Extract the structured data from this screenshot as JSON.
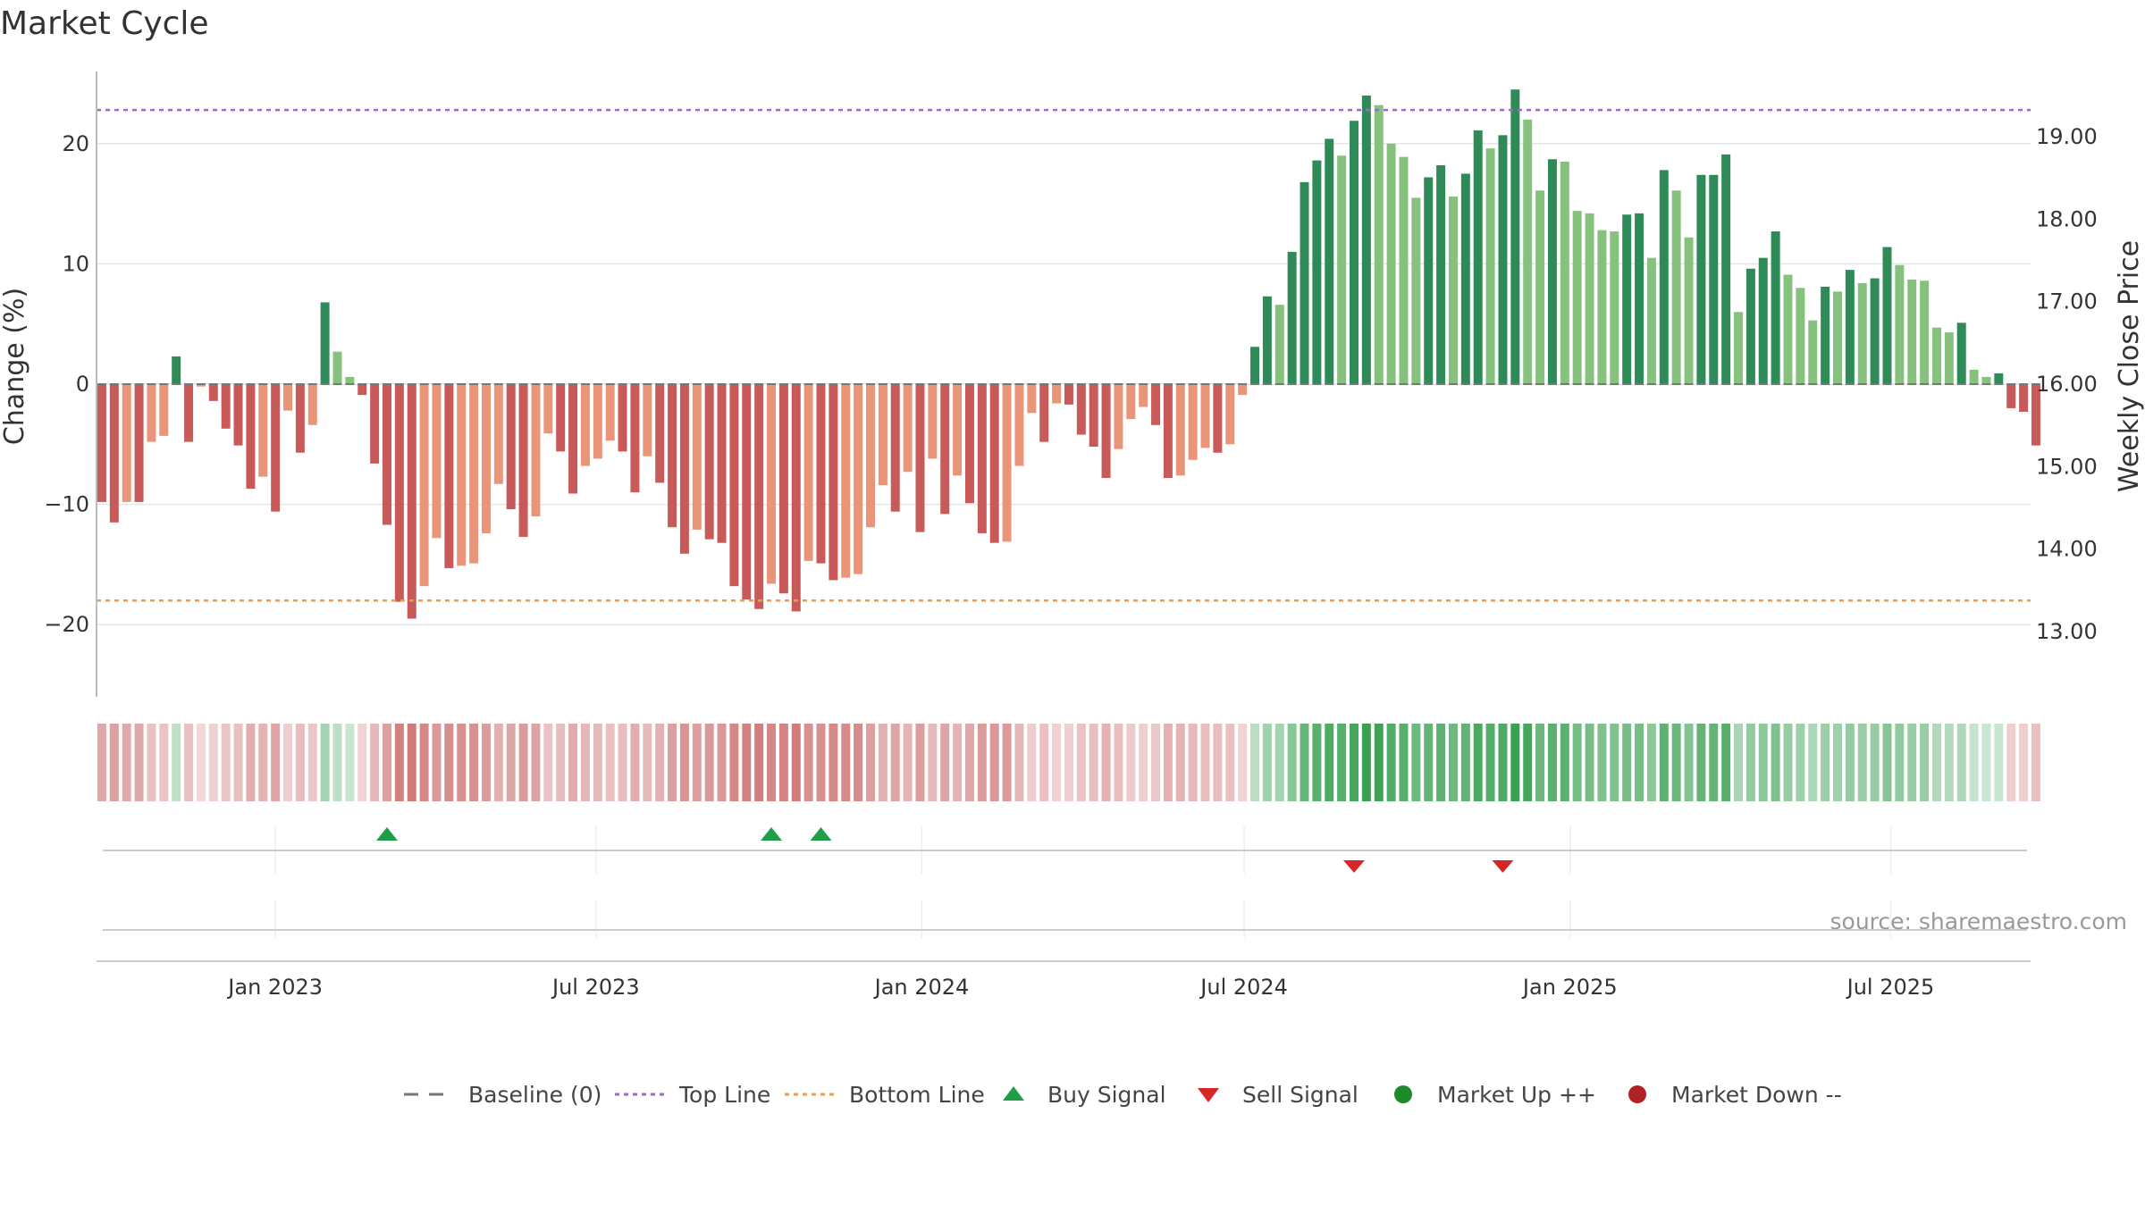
{
  "title": "Market Cycle",
  "source_text": "source: sharemaestro.com",
  "colors": {
    "pos_dark": "#2e8b57",
    "pos_light": "#86c17e",
    "neg_dark": "#c85a5a",
    "neg_light": "#e8957a",
    "top_line": "#9a6cc0",
    "bottom_line": "#e0a05a",
    "buy": "#1f9e4a",
    "sell": "#d62728",
    "market_up": "#1f8a2a",
    "market_down": "#b22222",
    "baseline": "#777777"
  },
  "chart_data": {
    "type": "bar",
    "title": "Market Cycle",
    "ylabel": "Change (%)",
    "y2label": "Weekly Close Price",
    "ylim": [
      -26,
      26
    ],
    "y_ticks": [
      20,
      10,
      0,
      -10,
      -20
    ],
    "y_tick_labels": [
      "20",
      "10",
      "0",
      "−10",
      "−20"
    ],
    "y2_ticks": [
      "19.00",
      "18.00",
      "17.00",
      "16.00",
      "15.00",
      "14.00",
      "13.00"
    ],
    "y2_tick_values": [
      19,
      18,
      17,
      16,
      15,
      14,
      13
    ],
    "y2lim": [
      12.6,
      19.6
    ],
    "x_ticks": [
      "Jan 2023",
      "Jul 2023",
      "Jan 2024",
      "Jul 2024",
      "Jan 2025",
      "Jul 2025"
    ],
    "x_tick_dates": [
      "2023-01-01",
      "2023-07-01",
      "2024-01-01",
      "2024-07-01",
      "2025-01-01",
      "2025-07-01"
    ],
    "x_range": [
      "2022-09-22",
      "2025-09-18"
    ],
    "top_line": 22.8,
    "bottom_line": -18,
    "grid": true,
    "legend_position": "bottom",
    "legend": [
      "Baseline (0)",
      "Top Line",
      "Bottom Line",
      "Buy Signal",
      "Sell Signal",
      "Market Up ++",
      "Market Down --"
    ],
    "buy_signals": [
      "2023-03-05",
      "2023-10-08",
      "2023-11-05"
    ],
    "sell_signals": [
      "2024-09-01",
      "2024-11-24"
    ],
    "weeks": {
      "start": "2022-09-25",
      "interval_days": 7,
      "values": [
        -9.8,
        -11.5,
        -9.8,
        -9.8,
        -4.8,
        -4.3,
        2.3,
        -4.8,
        -0.2,
        -1.4,
        -3.7,
        -5.1,
        -8.7,
        -7.7,
        -10.6,
        -2.2,
        -5.7,
        -3.4,
        6.8,
        2.7,
        0.6,
        -0.9,
        -6.6,
        -11.7,
        -18.1,
        -19.5,
        -16.8,
        -12.8,
        -15.3,
        -15.1,
        -14.9,
        -12.4,
        -8.3,
        -10.4,
        -12.7,
        -11.0,
        -4.1,
        -5.6,
        -9.1,
        -6.8,
        -6.2,
        -4.7,
        -5.6,
        -9.0,
        -6.0,
        -8.2,
        -11.9,
        -14.1,
        -12.1,
        -12.9,
        -13.2,
        -16.8,
        -17.9,
        -18.7,
        -16.6,
        -17.4,
        -18.9,
        -14.7,
        -14.9,
        -16.3,
        -16.1,
        -15.8,
        -11.9,
        -8.4,
        -10.6,
        -7.3,
        -12.3,
        -6.2,
        -10.8,
        -7.6,
        -9.9,
        -12.4,
        -13.2,
        -13.1,
        -6.8,
        -2.4,
        -4.8,
        -1.6,
        -1.7,
        -4.2,
        -5.2,
        -7.8,
        -5.4,
        -2.9,
        -1.9,
        -3.4,
        -7.8,
        -7.6,
        -6.3,
        -5.3,
        -5.7,
        -5.0,
        -0.9,
        3.1,
        7.3,
        6.6,
        11.0,
        16.8,
        18.6,
        20.4,
        19.0,
        21.9,
        24.0,
        23.2,
        20.0,
        18.9,
        15.5,
        17.2,
        18.2,
        15.6,
        17.5,
        21.1,
        19.6,
        20.7,
        24.5,
        22.0,
        16.1,
        18.7,
        18.5,
        14.4,
        14.2,
        12.8,
        12.7,
        14.1,
        14.2,
        10.5,
        17.8,
        16.1,
        12.2,
        17.4,
        17.4,
        19.1,
        6.0,
        9.6,
        10.5,
        12.7,
        9.1,
        8.0,
        5.3,
        8.1,
        7.7,
        9.5,
        8.4,
        8.8,
        11.4,
        9.9,
        8.7,
        8.6,
        4.7,
        4.3,
        5.1,
        1.2,
        0.6,
        0.9,
        -2.0,
        -2.3,
        -5.1
      ]
    }
  }
}
